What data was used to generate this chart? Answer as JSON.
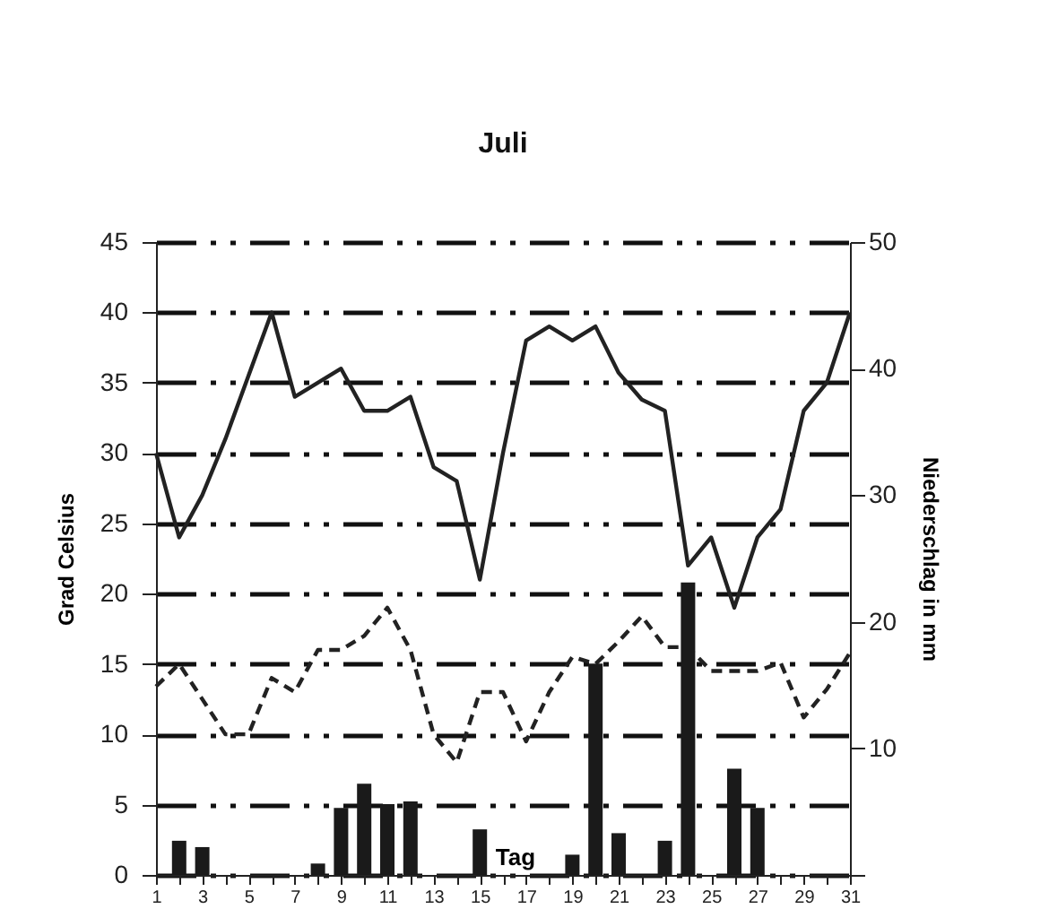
{
  "chart_data": {
    "type": "line",
    "title": "Juli",
    "xlabel": "Tag",
    "ylabel": "Grad Celsius",
    "y2label": "Niederschlag in mm",
    "x": [
      1,
      2,
      3,
      4,
      5,
      6,
      7,
      8,
      9,
      10,
      11,
      12,
      13,
      14,
      15,
      16,
      17,
      18,
      19,
      20,
      21,
      22,
      23,
      24,
      25,
      26,
      27,
      28,
      29,
      30,
      31
    ],
    "series": [
      {
        "color": "#222222",
        "line_style": "solid",
        "values": [
          30,
          24,
          27,
          31,
          35.5,
          40,
          34,
          35,
          36,
          33,
          33,
          34,
          29,
          28,
          21,
          30,
          38,
          39,
          38,
          39,
          35.7,
          33.8,
          33,
          22,
          24,
          19,
          24,
          26,
          33,
          35,
          40
        ]
      },
      {
        "color": "#222222",
        "line_style": "dashed",
        "values": [
          13.4,
          15,
          12.5,
          10,
          10,
          14,
          13,
          16,
          16,
          17,
          19,
          16,
          10,
          8,
          13,
          13,
          9.5,
          13,
          15.5,
          15,
          16.6,
          18.4,
          16.2,
          16.2,
          14.5,
          14.5,
          14.5,
          15.1,
          11.2,
          13.2,
          15.8
        ]
      },
      {
        "type": "bar",
        "axis": "y2",
        "color": "#1a1a1a",
        "values": [
          0,
          2.7,
          2.2,
          0,
          0,
          0,
          0,
          0.9,
          5.3,
          7.2,
          5.6,
          5.8,
          0,
          0,
          3.6,
          0,
          0,
          0,
          1.6,
          16.7,
          3.3,
          0,
          2.7,
          23.1,
          0,
          8.4,
          5.3,
          0,
          0,
          0,
          0
        ]
      }
    ],
    "xlim": [
      1,
      31
    ],
    "xticks": [
      1,
      {
        "value": 2,
        "label": null
      },
      3,
      {
        "value": 4,
        "label": null
      },
      5,
      {
        "value": 6,
        "label": null
      },
      7,
      {
        "value": 8,
        "label": null
      },
      9,
      {
        "value": 10,
        "label": null
      },
      11,
      {
        "value": 12,
        "label": null
      },
      13,
      {
        "value": 14,
        "label": null
      },
      15,
      {
        "value": 16,
        "label": null
      },
      17,
      {
        "value": 18,
        "label": null
      },
      19,
      {
        "value": 20,
        "label": null
      },
      21,
      {
        "value": 22,
        "label": null
      },
      23,
      {
        "value": 24,
        "label": null
      },
      25,
      {
        "value": 26,
        "label": null
      },
      27,
      {
        "value": 28,
        "label": null
      },
      29,
      {
        "value": 30,
        "label": null
      },
      31
    ],
    "ylim": [
      0,
      45
    ],
    "yticks": [
      0,
      5,
      10,
      15,
      20,
      25,
      30,
      35,
      40,
      45
    ],
    "y2lim": [
      0,
      50
    ],
    "y2ticks": [
      {
        "value": 0,
        "label": null
      },
      10,
      20,
      30,
      40,
      50
    ],
    "grid": "y",
    "marker": "none"
  }
}
